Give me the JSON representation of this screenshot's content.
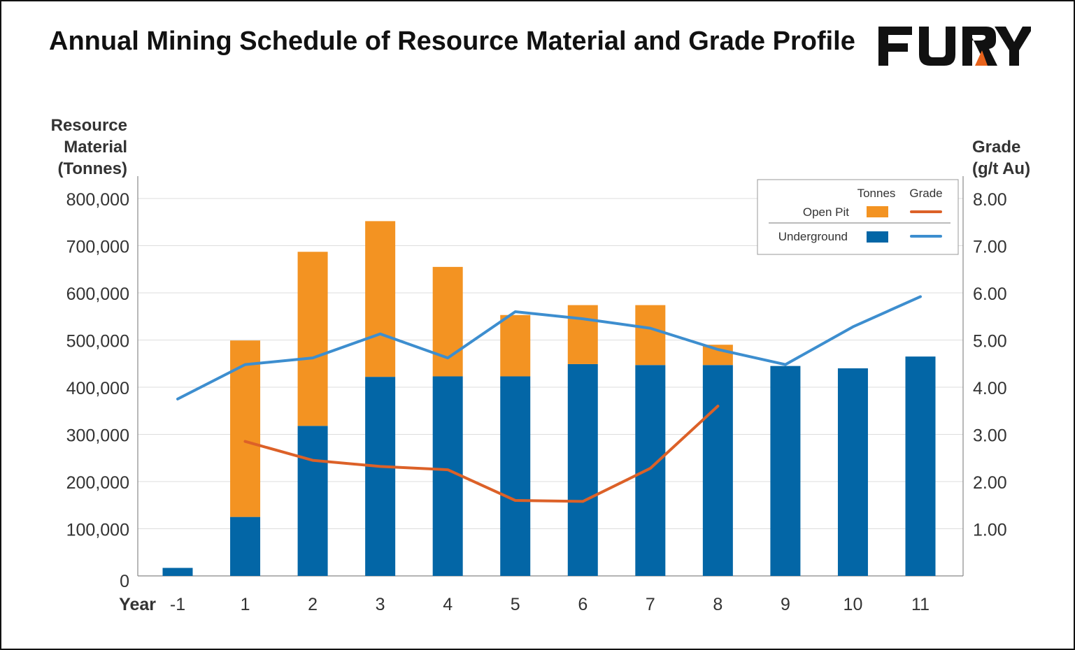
{
  "header": {
    "title": "Annual Mining Schedule of Resource Material and Grade Profile",
    "logo_text": "FURY"
  },
  "colors": {
    "open_pit_bar": "#F39322",
    "underground_bar": "#0366A6",
    "open_pit_line": "#DC6128",
    "underground_line": "#3D8ECF",
    "gridline": "#DDDDDD",
    "axis": "#888888",
    "text": "#333333"
  },
  "chart_data": {
    "type": "bar",
    "stacked": true,
    "title": "Annual Mining Schedule of Resource Material and Grade Profile",
    "xlabel": "Year",
    "ylabel_lines": [
      "Resource",
      "Material",
      "(Tonnes)"
    ],
    "y2label_lines": [
      "Grade",
      "(g/t Au)"
    ],
    "categories": [
      "-1",
      "1",
      "2",
      "3",
      "4",
      "5",
      "6",
      "7",
      "8",
      "9",
      "10",
      "11"
    ],
    "ylim": [
      0,
      800000
    ],
    "y_ticks": [
      0,
      100000,
      200000,
      300000,
      400000,
      500000,
      600000,
      700000,
      800000
    ],
    "y_tick_labels": [
      "0",
      "100,000",
      "200,000",
      "300,000",
      "400,000",
      "500,000",
      "600,000",
      "700,000",
      "800,000"
    ],
    "y2lim": [
      0,
      8
    ],
    "y2_ticks": [
      1,
      2,
      3,
      4,
      5,
      6,
      7,
      8
    ],
    "y2_tick_labels": [
      "1.00",
      "2.00",
      "3.00",
      "4.00",
      "5.00",
      "6.00",
      "7.00",
      "8.00"
    ],
    "grid": true,
    "legend": {
      "placement": "top-right",
      "col_tonnes": "Tonnes",
      "col_grade": "Grade",
      "rows": [
        "Open Pit",
        "Underground"
      ]
    },
    "bar_series": [
      {
        "name": "Underground",
        "values": [
          17000,
          125000,
          318000,
          422000,
          423000,
          423000,
          449000,
          447000,
          447000,
          445000,
          440000,
          465000
        ]
      },
      {
        "name": "Open Pit",
        "values": [
          0,
          374000,
          369000,
          330000,
          232000,
          130000,
          125000,
          127000,
          43000,
          0,
          0,
          0
        ]
      }
    ],
    "line_series": [
      {
        "name": "Open Pit",
        "axis": "right",
        "values": [
          null,
          2.85,
          2.45,
          2.32,
          2.25,
          1.6,
          1.58,
          2.28,
          3.6,
          null,
          null,
          null
        ]
      },
      {
        "name": "Underground",
        "axis": "right",
        "values": [
          3.75,
          4.48,
          4.62,
          5.13,
          4.62,
          5.6,
          5.45,
          5.25,
          4.8,
          4.48,
          5.28,
          5.92
        ]
      }
    ]
  }
}
